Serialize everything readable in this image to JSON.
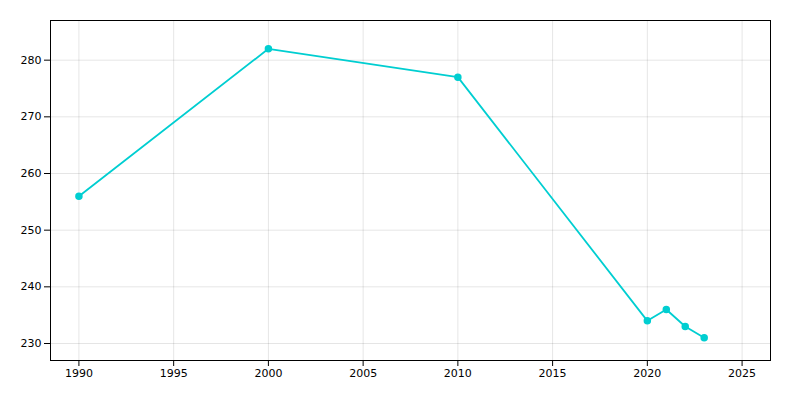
{
  "chart_data": {
    "type": "line",
    "x": [
      1990,
      2000,
      2010,
      2020,
      2021,
      2022,
      2023
    ],
    "values": [
      256,
      282,
      277,
      234,
      236,
      233,
      231
    ],
    "color": "#00CED1",
    "marker": "circle",
    "xlim": [
      1988.5,
      2026.5
    ],
    "ylim": [
      227,
      287
    ],
    "xticks": [
      1990,
      1995,
      2000,
      2005,
      2010,
      2015,
      2020,
      2025
    ],
    "yticks": [
      230,
      240,
      250,
      260,
      270,
      280
    ],
    "grid": true
  }
}
